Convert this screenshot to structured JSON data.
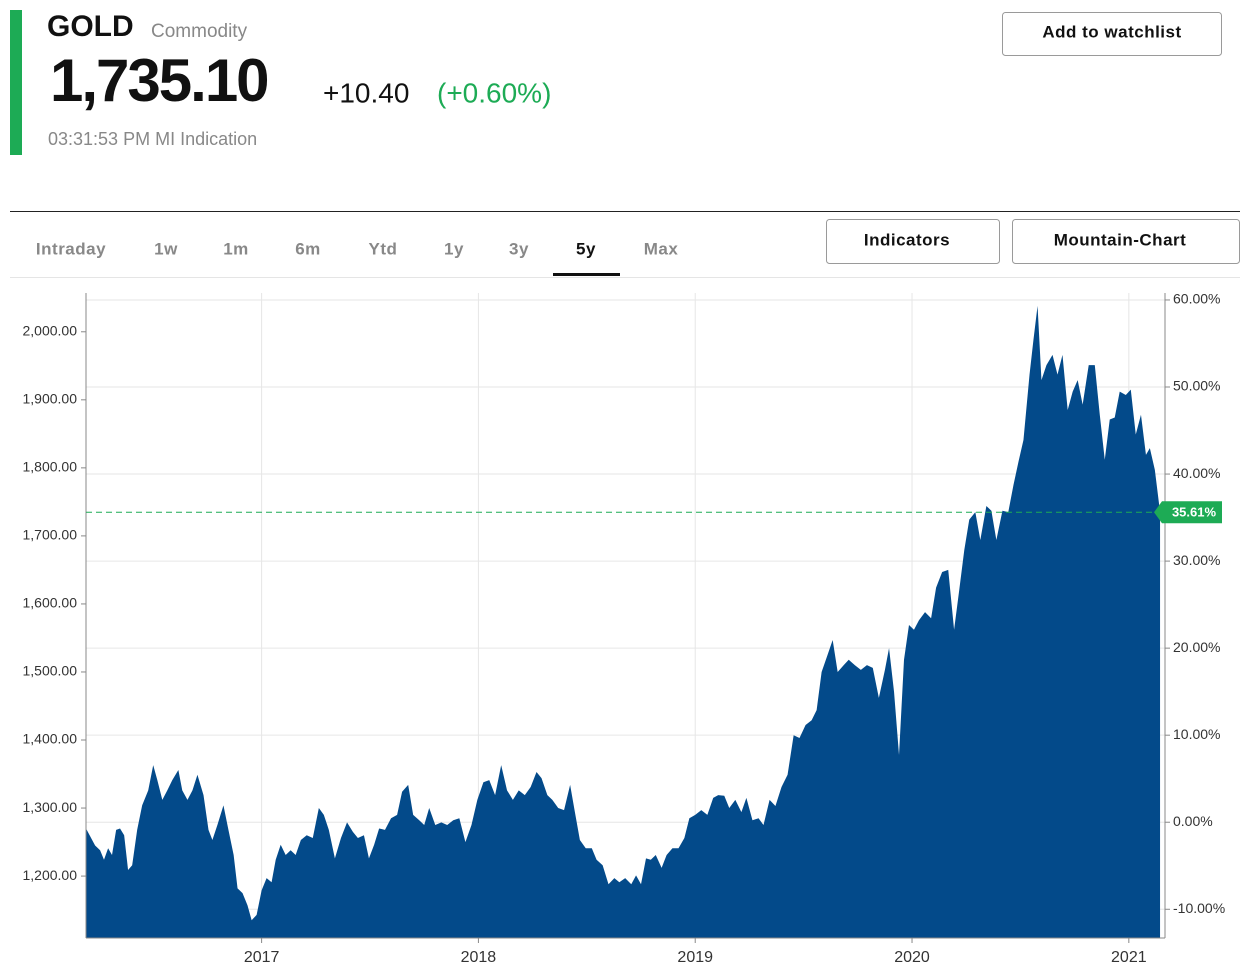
{
  "header": {
    "symbol": "GOLD",
    "asset_class": "Commodity",
    "price": "1,735.10",
    "change": "+10.40",
    "change_percent": "(+0.60%)",
    "timestamp": "03:31:53 PM MI Indication",
    "watchlist_button": "Add to watchlist"
  },
  "tabs": {
    "ranges": [
      "Intraday",
      "1w",
      "1m",
      "6m",
      "Ytd",
      "1y",
      "3y",
      "5y",
      "Max"
    ],
    "active": 7
  },
  "buttons": [
    "Indicators",
    "Mountain-Chart"
  ],
  "chart_data": {
    "type": "area",
    "color": "#034a8a",
    "grid": true,
    "x": [
      2016.19,
      2016.232,
      2016.255,
      2016.273,
      2016.292,
      2016.31,
      2016.329,
      2016.347,
      2016.366,
      2016.384,
      2016.403,
      2016.426,
      2016.449,
      2016.477,
      2016.5,
      2016.519,
      2016.542,
      2016.565,
      2016.588,
      2016.616,
      2016.634,
      2016.658,
      2016.681,
      2016.704,
      2016.732,
      2016.755,
      2016.773,
      2016.796,
      2016.824,
      2016.847,
      2016.871,
      2016.889,
      2016.912,
      2016.935,
      2016.954,
      2016.977,
      2017.0,
      2017.023,
      2017.046,
      2017.065,
      2017.088,
      2017.111,
      2017.134,
      2017.157,
      2017.181,
      2017.208,
      2017.236,
      2017.264,
      2017.287,
      2017.31,
      2017.338,
      2017.366,
      2017.394,
      2017.421,
      2017.444,
      2017.472,
      2017.495,
      2017.519,
      2017.542,
      2017.569,
      2017.597,
      2017.625,
      2017.648,
      2017.676,
      2017.699,
      2017.727,
      2017.75,
      2017.773,
      2017.801,
      2017.829,
      2017.856,
      2017.884,
      2017.912,
      2017.94,
      2017.968,
      2017.995,
      2018.023,
      2018.05,
      2018.077,
      2018.105,
      2018.132,
      2018.159,
      2018.186,
      2018.214,
      2018.241,
      2018.268,
      2018.291,
      2018.318,
      2018.341,
      2018.368,
      2018.395,
      2018.423,
      2018.445,
      2018.468,
      2018.495,
      2018.523,
      2018.545,
      2018.573,
      2018.6,
      2018.627,
      2018.65,
      2018.677,
      2018.705,
      2018.727,
      2018.75,
      2018.773,
      2018.795,
      2018.818,
      2018.845,
      2018.868,
      2018.895,
      2018.923,
      2018.95,
      2018.973,
      2019.0,
      2019.028,
      2019.056,
      2019.083,
      2019.106,
      2019.134,
      2019.157,
      2019.185,
      2019.213,
      2019.236,
      2019.264,
      2019.292,
      2019.315,
      2019.343,
      2019.37,
      2019.398,
      2019.426,
      2019.454,
      2019.481,
      2019.509,
      2019.537,
      2019.56,
      2019.583,
      2019.606,
      2019.634,
      2019.657,
      2019.685,
      2019.708,
      2019.736,
      2019.764,
      2019.792,
      2019.819,
      2019.847,
      2019.875,
      2019.894,
      2019.917,
      2019.94,
      2019.963,
      2019.986,
      2020.009,
      2020.032,
      2020.06,
      2020.088,
      2020.111,
      2020.139,
      2020.167,
      2020.194,
      2020.218,
      2020.241,
      2020.264,
      2020.292,
      2020.315,
      2020.343,
      2020.366,
      2020.389,
      2020.417,
      2020.444,
      2020.468,
      2020.491,
      2020.514,
      2020.542,
      2020.56,
      2020.579,
      2020.597,
      2020.62,
      2020.648,
      2020.671,
      2020.694,
      2020.718,
      2020.741,
      2020.764,
      2020.787,
      2020.815,
      2020.843,
      2020.866,
      2020.889,
      2020.912,
      2020.935,
      2020.958,
      2020.986,
      2021.009,
      2021.032,
      2021.056,
      2021.079,
      2021.097,
      2021.12,
      2021.144
    ],
    "values": [
      1270,
      1245,
      1238,
      1224,
      1241,
      1231,
      1268,
      1270,
      1260,
      1209,
      1216,
      1268,
      1304,
      1326,
      1363,
      1341,
      1312,
      1326,
      1341,
      1356,
      1326,
      1312,
      1326,
      1349,
      1319,
      1268,
      1253,
      1275,
      1304,
      1268,
      1231,
      1182,
      1175,
      1157,
      1135,
      1143,
      1179,
      1197,
      1191,
      1224,
      1246,
      1231,
      1238,
      1231,
      1253,
      1260,
      1256,
      1300,
      1290,
      1268,
      1226,
      1256,
      1279,
      1265,
      1256,
      1260,
      1226,
      1246,
      1270,
      1268,
      1285,
      1290,
      1324,
      1334,
      1290,
      1282,
      1275,
      1300,
      1275,
      1279,
      1275,
      1282,
      1285,
      1250,
      1275,
      1312,
      1338,
      1341,
      1319,
      1363,
      1326,
      1312,
      1326,
      1319,
      1331,
      1353,
      1344,
      1319,
      1312,
      1300,
      1297,
      1334,
      1294,
      1253,
      1241,
      1241,
      1224,
      1216,
      1188,
      1197,
      1191,
      1197,
      1188,
      1201,
      1188,
      1226,
      1224,
      1231,
      1212,
      1231,
      1241,
      1241,
      1256,
      1285,
      1290,
      1297,
      1290,
      1315,
      1319,
      1318,
      1300,
      1312,
      1294,
      1315,
      1282,
      1285,
      1275,
      1312,
      1303,
      1331,
      1349,
      1407,
      1403,
      1422,
      1429,
      1444,
      1500,
      1521,
      1547,
      1500,
      1510,
      1518,
      1510,
      1503,
      1510,
      1506,
      1462,
      1503,
      1535,
      1471,
      1378,
      1518,
      1569,
      1562,
      1576,
      1588,
      1579,
      1624,
      1647,
      1650,
      1562,
      1621,
      1679,
      1724,
      1735,
      1694,
      1744,
      1737,
      1694,
      1737,
      1735,
      1775,
      1809,
      1841,
      1937,
      1988,
      2038,
      1929,
      1951,
      1966,
      1937,
      1966,
      1885,
      1912,
      1929,
      1893,
      1951,
      1951,
      1878,
      1812,
      1871,
      1874,
      1912,
      1907,
      1915,
      1849,
      1878,
      1819,
      1829,
      1797,
      1735.1
    ],
    "xlim": [
      2016.19,
      2021.153
    ],
    "xticks": [
      2017,
      2018,
      2019,
      2020,
      2021
    ],
    "ylim": [
      1109,
      2057
    ],
    "yticks": [
      {
        "value": 1200,
        "label": "1,200.00"
      },
      {
        "value": 1300,
        "label": "1,300.00"
      },
      {
        "value": 1400,
        "label": "1,400.00"
      },
      {
        "value": 1500,
        "label": "1,500.00"
      },
      {
        "value": 1600,
        "label": "1,600.00"
      },
      {
        "value": 1700,
        "label": "1,700.00"
      },
      {
        "value": 1800,
        "label": "1,800.00"
      },
      {
        "value": 1900,
        "label": "1,900.00"
      },
      {
        "value": 2000,
        "label": "2,000.00"
      }
    ],
    "y2lim": [
      -13.3,
      60.8
    ],
    "y2ticks": [
      {
        "value": -10,
        "label": "-10.00%"
      },
      {
        "value": 0,
        "label": "0.00%"
      },
      {
        "value": 10,
        "label": "10.00%"
      },
      {
        "value": 20,
        "label": "20.00%"
      },
      {
        "value": 30,
        "label": "30.00%"
      },
      {
        "value": 40,
        "label": "40.00%"
      },
      {
        "value": 50,
        "label": "50.00%"
      },
      {
        "value": 60,
        "label": "60.00%"
      }
    ],
    "reference_line": {
      "value": 35.61,
      "label": "35.61%",
      "axis": "y2",
      "color": "#1dab55"
    }
  }
}
